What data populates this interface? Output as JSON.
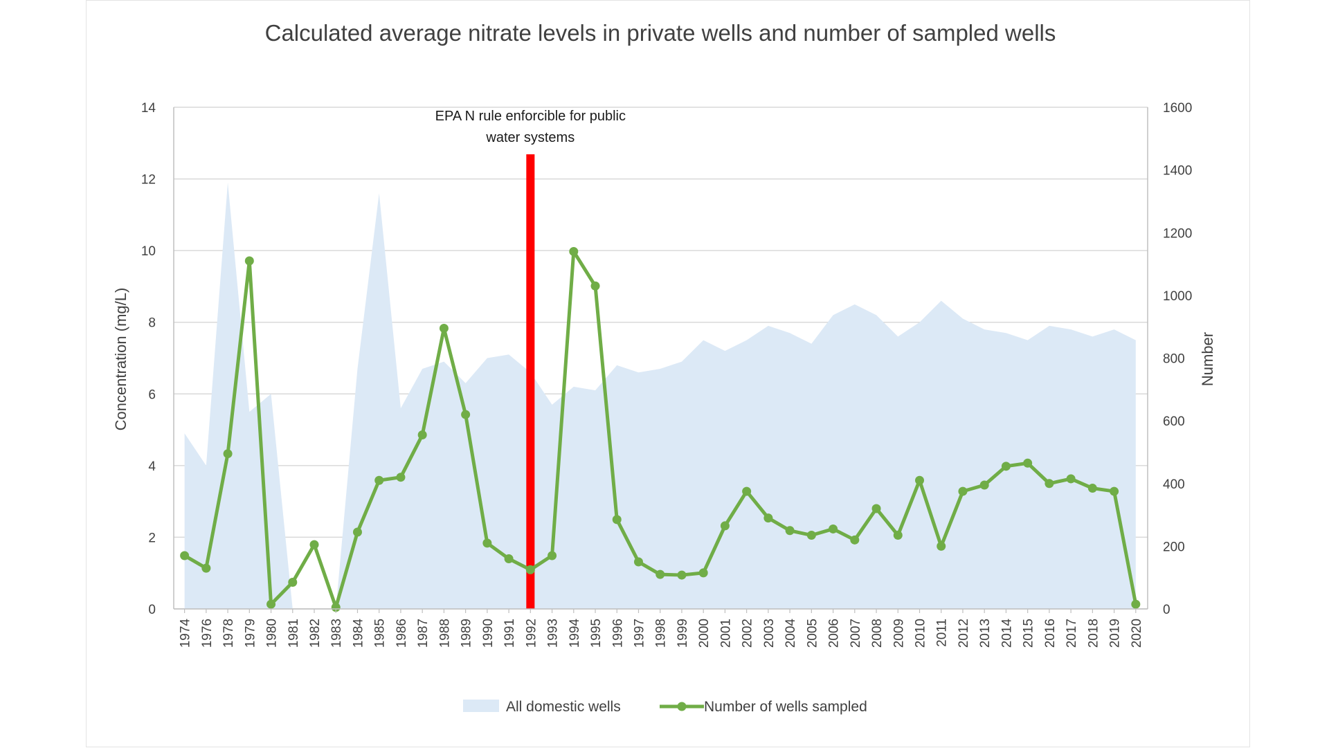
{
  "chart_data": {
    "type": "line",
    "title": "Calculated average nitrate levels in private wells and number of sampled wells",
    "ylabel": "Concentration (mg/L)",
    "y2label": "Number",
    "ylim": [
      0,
      14
    ],
    "y2lim": [
      0,
      1600
    ],
    "y_ticks": [
      "0",
      "2",
      "4",
      "6",
      "8",
      "10",
      "12",
      "14"
    ],
    "y2_ticks": [
      "0",
      "200",
      "400",
      "600",
      "800",
      "1000",
      "1200",
      "1400",
      "1600"
    ],
    "grid": true,
    "legend_position": "bottom",
    "categories": [
      "1974",
      "1976",
      "1978",
      "1979",
      "1980",
      "1981",
      "1982",
      "1983",
      "1984",
      "1985",
      "1986",
      "1987",
      "1988",
      "1989",
      "1990",
      "1991",
      "1992",
      "1993",
      "1994",
      "1995",
      "1996",
      "1997",
      "1998",
      "1999",
      "2000",
      "2001",
      "2002",
      "2003",
      "2004",
      "2005",
      "2006",
      "2007",
      "2008",
      "2009",
      "2010",
      "2011",
      "2012",
      "2013",
      "2014",
      "2015",
      "2016",
      "2017",
      "2018",
      "2019",
      "2020"
    ],
    "series": [
      {
        "name": "All domestic wells",
        "type": "area",
        "axis": "left",
        "color": "#dce9f6",
        "values": [
          4.9,
          4.0,
          11.9,
          5.5,
          6.0,
          0,
          0,
          0,
          6.7,
          11.6,
          5.6,
          6.7,
          6.9,
          6.3,
          7.0,
          7.1,
          6.6,
          5.7,
          6.2,
          6.1,
          6.8,
          6.6,
          6.7,
          6.9,
          7.5,
          7.2,
          7.5,
          7.9,
          7.7,
          7.4,
          8.2,
          8.5,
          8.2,
          7.6,
          8.0,
          8.6,
          8.1,
          7.8,
          7.7,
          7.5,
          7.9,
          7.8,
          7.6,
          7.8,
          7.5
        ]
      },
      {
        "name": "Number of wells sampled",
        "type": "line",
        "axis": "right",
        "color": "#70ad47",
        "values": [
          170,
          130,
          495,
          1110,
          15,
          85,
          205,
          5,
          245,
          410,
          420,
          555,
          895,
          620,
          210,
          160,
          125,
          170,
          1140,
          1030,
          285,
          150,
          110,
          108,
          115,
          265,
          375,
          290,
          250,
          235,
          255,
          220,
          320,
          235,
          410,
          200,
          375,
          395,
          455,
          465,
          400,
          415,
          385,
          375,
          15
        ]
      }
    ],
    "annotations": [
      {
        "text_lines": [
          "EPA N rule enforcible for public",
          "water systems"
        ],
        "x_category": "1992",
        "color": "#ff0000"
      }
    ]
  }
}
